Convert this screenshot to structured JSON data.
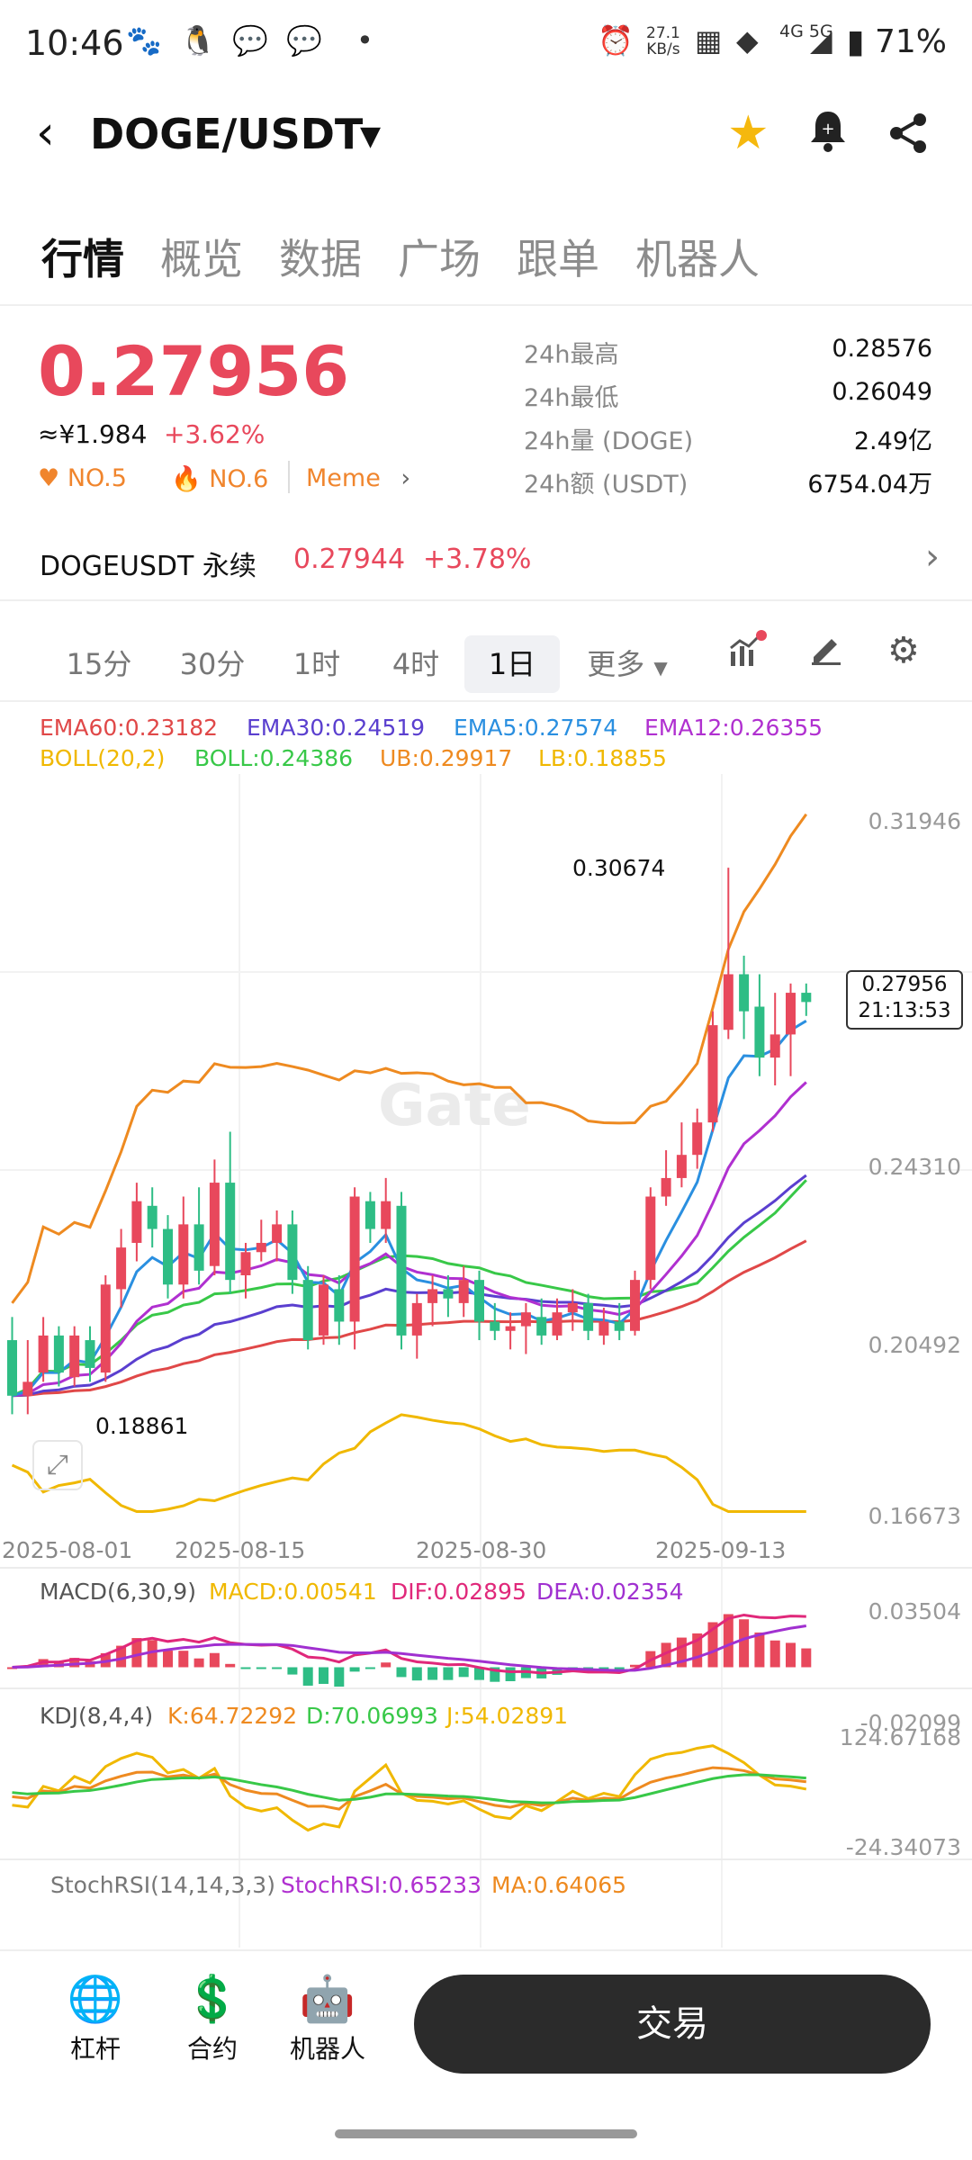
{
  "status_bar": {
    "time": "10:46",
    "net_speed": "27.1",
    "net_unit": "KB/s",
    "network": "4G 5G",
    "battery": "71%"
  },
  "header": {
    "pair": "DOGE/USDT",
    "icons": [
      "back-icon",
      "dropdown-caret-icon",
      "star-icon",
      "bell-icon",
      "share-icon"
    ],
    "accent_star": "#f5b80e"
  },
  "tabs": [
    "行情",
    "概览",
    "数据",
    "广场",
    "跟单",
    "机器人"
  ],
  "ticker": {
    "price": "0.27956",
    "cny": "≈¥1.984",
    "change": "+3.62%",
    "rank1": "NO.5",
    "rank2": "NO.6",
    "tag": "Meme",
    "stats": [
      {
        "label": "24h最高",
        "value": "0.28576"
      },
      {
        "label": "24h最低",
        "value": "0.26049"
      },
      {
        "label": "24h量 (DOGE)",
        "value": "2.49亿"
      },
      {
        "label": "24h额 (USDT)",
        "value": "6754.04万"
      }
    ],
    "up_color": "#e8485c",
    "down_color": "#2ebd85"
  },
  "perpetual": {
    "label": "DOGEUSDT 永续",
    "price": "0.27944",
    "change": "+3.78%"
  },
  "intervals": [
    "15分",
    "30分",
    "1时",
    "4时",
    "1日",
    "更多"
  ],
  "active_interval": "1日",
  "indicators": {
    "ema60": "EMA60:0.23182",
    "ema30": "EMA30:0.24519",
    "ema5": "EMA5:0.27574",
    "ema12": "EMA12:0.26355",
    "boll": "BOLL(20,2)",
    "boll_mid": "BOLL:0.24386",
    "ub": "UB:0.29917",
    "lb": "LB:0.18855",
    "macd_title": "MACD(6,30,9)",
    "macd": "MACD:0.00541",
    "dif": "DIF:0.02895",
    "dea": "DEA:0.02354",
    "kdj_title": "KDJ(8,4,4)",
    "k": "K:64.72292",
    "d": "D:70.06993",
    "j": "J:54.02891",
    "stoch_title": "StochRSI(14,14,3,3)",
    "stoch": "StochRSI:0.65233",
    "stoch_ma": "MA:0.64065"
  },
  "chart_data": {
    "type": "candlestick",
    "y_ticks": [
      "0.31946",
      "0.24310",
      "0.20492",
      "0.16673"
    ],
    "ylim": [
      0.16673,
      0.31946
    ],
    "x_ticks": [
      "2025-08-01",
      "2025-08-15",
      "2025-08-30",
      "2025-09-13"
    ],
    "high_label": "0.30674",
    "low_label": "0.18861",
    "last_price": "0.27956",
    "countdown": "21:13:53",
    "watermark": "Gate",
    "macd_ticks": [
      "0.03504",
      "-0.02099"
    ],
    "kdj_ticks": [
      "124.67168",
      "-24.34073"
    ],
    "candles": [
      [
        0.205,
        0.193,
        0.21,
        0.189
      ],
      [
        0.193,
        0.196,
        0.205,
        0.189
      ],
      [
        0.198,
        0.206,
        0.21,
        0.196
      ],
      [
        0.206,
        0.198,
        0.208,
        0.195
      ],
      [
        0.197,
        0.206,
        0.208,
        0.195
      ],
      [
        0.205,
        0.199,
        0.208,
        0.196
      ],
      [
        0.198,
        0.217,
        0.219,
        0.196
      ],
      [
        0.216,
        0.225,
        0.229,
        0.212
      ],
      [
        0.226,
        0.235,
        0.239,
        0.222
      ],
      [
        0.234,
        0.229,
        0.238,
        0.225
      ],
      [
        0.229,
        0.217,
        0.232,
        0.214
      ],
      [
        0.217,
        0.23,
        0.236,
        0.214
      ],
      [
        0.23,
        0.22,
        0.238,
        0.217
      ],
      [
        0.221,
        0.239,
        0.244,
        0.219
      ],
      [
        0.239,
        0.218,
        0.25,
        0.215
      ],
      [
        0.219,
        0.224,
        0.226,
        0.214
      ],
      [
        0.224,
        0.226,
        0.231,
        0.222
      ],
      [
        0.226,
        0.23,
        0.233,
        0.222
      ],
      [
        0.23,
        0.218,
        0.233,
        0.215
      ],
      [
        0.218,
        0.205,
        0.221,
        0.203
      ],
      [
        0.206,
        0.217,
        0.219,
        0.204
      ],
      [
        0.216,
        0.209,
        0.219,
        0.204
      ],
      [
        0.209,
        0.236,
        0.238,
        0.203
      ],
      [
        0.235,
        0.229,
        0.237,
        0.226
      ],
      [
        0.229,
        0.235,
        0.24,
        0.226
      ],
      [
        0.234,
        0.206,
        0.237,
        0.203
      ],
      [
        0.206,
        0.213,
        0.215,
        0.201
      ],
      [
        0.213,
        0.216,
        0.219,
        0.208
      ],
      [
        0.216,
        0.214,
        0.219,
        0.21
      ],
      [
        0.213,
        0.218,
        0.221,
        0.21
      ],
      [
        0.218,
        0.209,
        0.22,
        0.205
      ],
      [
        0.209,
        0.207,
        0.213,
        0.205
      ],
      [
        0.207,
        0.208,
        0.211,
        0.203
      ],
      [
        0.208,
        0.211,
        0.213,
        0.202
      ],
      [
        0.21,
        0.206,
        0.214,
        0.204
      ],
      [
        0.206,
        0.211,
        0.214,
        0.205
      ],
      [
        0.211,
        0.213,
        0.216,
        0.207
      ],
      [
        0.213,
        0.207,
        0.215,
        0.205
      ],
      [
        0.206,
        0.209,
        0.212,
        0.204
      ],
      [
        0.209,
        0.207,
        0.213,
        0.205
      ],
      [
        0.207,
        0.218,
        0.22,
        0.206
      ],
      [
        0.218,
        0.236,
        0.238,
        0.216
      ],
      [
        0.236,
        0.24,
        0.246,
        0.234
      ],
      [
        0.24,
        0.245,
        0.252,
        0.238
      ],
      [
        0.245,
        0.252,
        0.255,
        0.242
      ],
      [
        0.252,
        0.273,
        0.276,
        0.25
      ],
      [
        0.272,
        0.284,
        0.307,
        0.27
      ],
      [
        0.284,
        0.276,
        0.288,
        0.27
      ],
      [
        0.277,
        0.266,
        0.284,
        0.262
      ],
      [
        0.266,
        0.271,
        0.28,
        0.26
      ],
      [
        0.271,
        0.28,
        0.282,
        0.262
      ],
      [
        0.28,
        0.278,
        0.282,
        0.275
      ]
    ]
  }
}
